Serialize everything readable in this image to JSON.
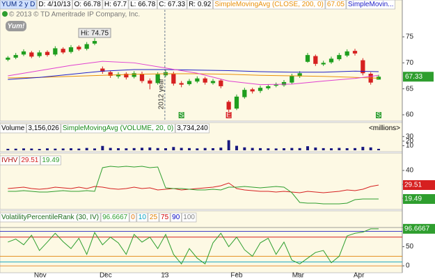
{
  "chart_data": [
    {
      "type": "candlestick",
      "symbol": "YUM 2 y D",
      "fields": [
        "D: 4/10/13",
        "O: 66.78",
        "H: 67.7",
        "L: 66.78",
        "C: 67.33",
        "R: 0.92"
      ],
      "copyright": "© 2013 © TD Ameritrade IP Company, Inc.",
      "logo": "Yum!",
      "open": [
        70.6,
        71.0,
        71.6,
        72.0,
        71.3,
        72.1,
        71.6,
        72.7,
        72.1,
        73.1,
        72.7,
        73.7,
        68.9,
        68.2,
        67.4,
        67.9,
        67.3,
        67.9,
        66.6,
        66.1,
        67.6,
        67.9,
        66.1,
        65.9,
        66.4,
        67.0,
        66.1,
        66.6,
        62.5,
        61.2,
        63.4,
        64.9,
        64.6,
        65.1,
        65.6,
        65.7,
        66.2,
        67.4,
        70.2,
        71.3,
        69.7,
        70.1,
        70.7,
        71.4,
        72.3,
        70.5,
        67.9,
        66.78
      ],
      "high": [
        71.3,
        71.9,
        72.6,
        72.3,
        72.4,
        72.4,
        73.2,
        73.0,
        73.4,
        73.4,
        74.0,
        74.75,
        69.3,
        68.5,
        68.2,
        68.2,
        68.4,
        68.3,
        67.0,
        68.2,
        68.6,
        68.3,
        66.5,
        66.9,
        67.4,
        67.3,
        66.9,
        66.9,
        62.8,
        63.9,
        65.2,
        65.2,
        65.6,
        65.9,
        66.2,
        66.7,
        67.9,
        68.4,
        71.9,
        71.6,
        70.4,
        71.2,
        71.9,
        72.6,
        72.7,
        70.9,
        68.2,
        67.7
      ],
      "low": [
        70.3,
        70.7,
        71.3,
        70.9,
        71.0,
        71.2,
        71.3,
        71.7,
        71.8,
        72.3,
        72.4,
        73.4,
        67.9,
        67.1,
        67.0,
        66.8,
        67.0,
        66.1,
        64.9,
        65.8,
        67.3,
        65.6,
        65.3,
        65.6,
        66.1,
        65.8,
        65.8,
        65.1,
        60.4,
        60.9,
        63.1,
        64.1,
        64.2,
        64.8,
        65.3,
        65.4,
        65.9,
        67.1,
        70.0,
        69.4,
        69.4,
        69.8,
        70.4,
        71.1,
        71.4,
        67.6,
        65.8,
        66.78
      ],
      "close": [
        71.0,
        71.5,
        72.2,
        71.2,
        72.0,
        71.5,
        72.8,
        72.0,
        73.0,
        72.6,
        73.6,
        74.2,
        68.3,
        67.5,
        67.8,
        67.2,
        68.0,
        66.5,
        66.0,
        67.8,
        68.2,
        66.0,
        65.8,
        66.5,
        67.0,
        66.2,
        66.5,
        65.5,
        61.0,
        63.5,
        64.8,
        64.5,
        65.2,
        65.5,
        65.8,
        66.3,
        67.5,
        68.0,
        71.5,
        69.8,
        70.0,
        70.8,
        71.5,
        72.2,
        71.8,
        68.0,
        66.2,
        67.33
      ],
      "up_color": "#1e9e1e",
      "down_color": "#d62020",
      "tag_color": "#2e9e2e",
      "studies": [
        {
          "name": "SimpleMovingAvg (CLOSE, 200, 0)",
          "value": 67.05,
          "color": "#e8900a",
          "x": [
            0,
            4,
            8,
            12,
            16,
            20,
            24,
            28,
            32,
            36,
            40,
            44,
            47
          ],
          "values": [
            67.1,
            67.2,
            67.4,
            67.6,
            67.8,
            67.9,
            67.9,
            67.8,
            67.6,
            67.5,
            67.4,
            67.2,
            67.05
          ]
        },
        {
          "name": "SimpleMovin...",
          "color": "#2020c8",
          "x": [
            0,
            4,
            8,
            12,
            16,
            20,
            24,
            28,
            32,
            36,
            40,
            44,
            47
          ],
          "values": [
            66.8,
            67.2,
            67.8,
            68.4,
            68.7,
            68.7,
            68.6,
            68.5,
            68.3,
            68.2,
            68.2,
            68.4,
            68.3
          ]
        },
        {
          "color": "#e040d0",
          "x": [
            0,
            4,
            8,
            12,
            16,
            20,
            24,
            28,
            32,
            36,
            40,
            44,
            47
          ],
          "values": [
            67.5,
            68.5,
            69.5,
            70.3,
            70.0,
            69.0,
            68.0,
            66.5,
            65.8,
            65.9,
            66.5,
            67.0,
            67.6
          ]
        }
      ],
      "annotation": {
        "x": 11,
        "value": 74.75,
        "label": "Hi: 74.75"
      },
      "year_marker": {
        "x": 19.9,
        "label": "2012 year"
      },
      "markers": [
        {
          "x": 22,
          "label": "S",
          "color": "#2e9e2e"
        },
        {
          "x": 28,
          "label": "E",
          "color": "#d62020"
        },
        {
          "x": 47,
          "label": "S",
          "color": "#2e9e2e"
        }
      ],
      "xlim": [
        -1,
        50
      ],
      "xticks": [
        {
          "value": 4.1,
          "label": "Nov"
        },
        {
          "value": 12.4,
          "label": "Dec"
        },
        {
          "value": 19.9,
          "label": "13"
        },
        {
          "value": 29,
          "label": "Feb"
        },
        {
          "value": 36.8,
          "label": "Mar"
        },
        {
          "value": 44.5,
          "label": "Apr"
        }
      ],
      "ylim": [
        59.06,
        80.22
      ],
      "yticks": [
        60,
        65,
        70,
        75
      ]
    },
    {
      "type": "bar",
      "title": "Volume",
      "value_text": "3,156,026",
      "study": "SimpleMovingAvg (VOLUME, 20, 0)",
      "study_text": "3,734,240",
      "study_color": "#1a8a1a",
      "unit": "<millions>",
      "values": [
        3.2,
        3.5,
        4.1,
        3.8,
        3.0,
        4.2,
        3.6,
        3.9,
        4.4,
        3.7,
        5.1,
        4.0,
        9.5,
        5.2,
        4.6,
        4.3,
        4.8,
        5.5,
        6.1,
        4.9,
        4.5,
        7.2,
        5.3,
        4.8,
        4.2,
        5.0,
        4.6,
        5.8,
        22.0,
        9.8,
        6.4,
        5.2,
        4.7,
        4.3,
        4.0,
        4.5,
        5.1,
        4.8,
        8.9,
        6.0,
        4.7,
        4.4,
        5.2,
        4.6,
        4.8,
        7.5,
        6.3,
        3.156026
      ],
      "color": "#1a1a80",
      "ylim": [
        0,
        35
      ],
      "yticks": [
        10,
        20,
        30
      ]
    },
    {
      "type": "line",
      "title": "IVHV",
      "series": [
        {
          "color": "#d62020",
          "values": [
            27,
            27.5,
            28,
            27,
            26.5,
            27,
            28,
            27.5,
            27,
            28,
            27,
            28.5,
            28,
            27,
            26.5,
            27,
            28,
            27,
            27.5,
            26,
            26.5,
            27,
            26,
            26.5,
            27,
            27.5,
            28,
            29,
            31,
            27,
            26,
            25.5,
            25,
            25,
            24.5,
            25,
            24.5,
            24,
            25,
            24.5,
            24,
            24.5,
            25,
            26,
            25.5,
            26.5,
            28.5,
            29.51
          ]
        },
        {
          "color": "#2e9e2e",
          "values": [
            25,
            25,
            25.5,
            25,
            24.5,
            24.5,
            25,
            25.5,
            25,
            25,
            25.5,
            25,
            42,
            43,
            42.5,
            43,
            42.5,
            43,
            42,
            42.5,
            27.5,
            27,
            27,
            26.5,
            26,
            26,
            26.5,
            26,
            28,
            28,
            28.5,
            28,
            27.5,
            28,
            28.5,
            28,
            24,
            17,
            16.5,
            16.5,
            16,
            16,
            16,
            16.5,
            19,
            19.5,
            19.5,
            19.49
          ]
        }
      ],
      "ylim": [
        13.5,
        52
      ],
      "yticks": [
        20,
        30,
        40
      ]
    },
    {
      "type": "line",
      "title": "VolatilityPercentileRank (30, IV)",
      "series": [
        {
          "color": "#2e9e2e",
          "values": [
            62,
            70,
            55,
            80,
            40,
            62,
            85,
            63,
            45,
            72,
            30,
            87,
            55,
            75,
            60,
            30,
            82,
            62,
            75,
            45,
            82,
            30,
            5,
            45,
            20,
            5,
            60,
            85,
            50,
            75,
            42,
            25,
            60,
            72,
            30,
            62,
            15,
            5,
            20,
            35,
            40,
            8,
            25,
            78,
            85,
            88,
            96.6667,
            96.6667
          ]
        }
      ],
      "levels": [
        {
          "value": 0,
          "color": "#e07000"
        },
        {
          "value": 10,
          "color": "#00a0c0"
        },
        {
          "value": 25,
          "color": "#e08000"
        },
        {
          "value": 75,
          "color": "#d00000"
        },
        {
          "value": 90,
          "color": "#0000c0"
        },
        {
          "value": 100,
          "color": "#808080"
        }
      ],
      "ylim": [
        -18,
        140
      ],
      "yticks": [
        0,
        50,
        100
      ]
    }
  ]
}
